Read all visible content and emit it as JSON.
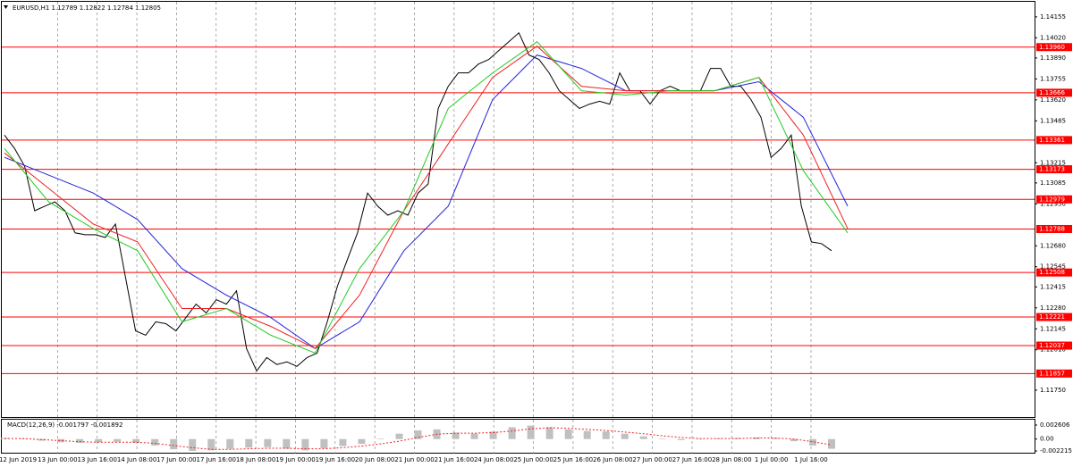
{
  "chart_data": {
    "type": "line",
    "title": "EURUSD,H1  1.12789 1.12822 1.12784 1.12805",
    "ylim": [
      1.11577,
      1.14252
    ],
    "yticks": [
      1.14155,
      {
        "value": 1.1402,
        "label": "1.14020"
      },
      {
        "value": 1.1389,
        "label": "1.13890"
      },
      1.13755,
      {
        "value": 1.1362,
        "label": "1.13620"
      },
      1.13485,
      1.13215,
      1.13085,
      {
        "value": 1.1295,
        "label": "1.12950"
      },
      {
        "value": 1.1268,
        "label": "1.12680"
      },
      1.12545,
      1.12415,
      {
        "value": 1.1228,
        "label": "1.12280"
      },
      1.12145,
      {
        "value": 1.1201,
        "label": "1.12010"
      },
      {
        "value": 1.1175,
        "label": "1.11750"
      }
    ],
    "x_labels": [
      "12 Jun 2019",
      "13 Jun 00:00",
      "13 Jun 16:00",
      "14 Jun 08:00",
      "17 Jun 00:00",
      "17 Jun 16:00",
      "18 Jun 08:00",
      "19 Jun 00:00",
      "19 Jun 16:00",
      "20 Jun 08:00",
      "21 Jun 00:00",
      "21 Jun 16:00",
      "24 Jun 08:00",
      "25 Jun 00:00",
      "25 Jun 16:00",
      "26 Jun 08:00",
      "27 Jun 00:00",
      "27 Jun 16:00",
      "28 Jun 08:00",
      "1 Jul 00:00",
      "1 Jul 16:00"
    ],
    "grid": true,
    "series": [
      {
        "color": "#000000",
        "values": [
          1.13393,
          1.13307,
          1.13192,
          1.12906,
          1.12935,
          1.12963,
          1.12906,
          1.12763,
          1.12751,
          1.12751,
          1.12734,
          1.1282,
          1.12476,
          1.12132,
          1.12104,
          1.1219,
          1.12178,
          1.12132,
          1.12218,
          1.12304,
          1.12247,
          1.12333,
          1.12304,
          1.1239,
          1.12018,
          1.11874,
          1.1196,
          1.11915,
          1.11932,
          1.11903,
          1.1196,
          1.11989,
          1.1219,
          1.12419,
          1.12591,
          1.12763,
          1.1302,
          1.12935,
          1.12877,
          1.12906,
          1.12877,
          1.1302,
          1.13078,
          1.13565,
          1.13708,
          1.13794,
          1.13794,
          1.13851,
          1.1388,
          1.13937,
          1.13995,
          1.14052,
          1.13909,
          1.1388,
          1.13794,
          1.13679,
          1.13622,
          1.13565,
          1.13593,
          1.13611,
          1.13593,
          1.13794,
          1.13679,
          1.13679,
          1.13593,
          1.13679,
          1.13708,
          1.13679,
          1.13679,
          1.13679,
          1.13823,
          1.13823,
          1.13708,
          1.13708,
          1.13622,
          1.13508,
          1.1325,
          1.13307,
          1.13393,
          1.12935,
          1.12705,
          1.12694,
          1.12648
        ]
      },
      {
        "color": "#2222dd",
        "values": [
          1.1325,
          1.13135,
          1.1302,
          1.12849,
          1.12533,
          1.12362,
          1.12218,
          1.12018,
          1.1219,
          1.12648,
          1.12935,
          1.13622,
          1.13909,
          1.13823,
          1.13679,
          1.13679,
          1.13679,
          1.13737,
          1.13508,
          1.12935
        ]
      },
      {
        "color": "#ee2222",
        "values": [
          1.13278,
          1.13049,
          1.1282,
          1.12705,
          1.12276,
          1.12276,
          1.12161,
          1.12018,
          1.12362,
          1.12906,
          1.13336,
          1.13765,
          1.13966,
          1.13708,
          1.13679,
          1.13679,
          1.13679,
          1.13765,
          1.13393,
          1.12791
        ]
      },
      {
        "color": "#22cc22",
        "values": [
          1.13307,
          1.12963,
          1.12791,
          1.12648,
          1.1219,
          1.12276,
          1.12104,
          1.11989,
          1.12533,
          1.12906,
          1.13565,
          1.13794,
          1.13995,
          1.13679,
          1.13651,
          1.13679,
          1.13679,
          1.13765,
          1.13164,
          1.12763
        ]
      }
    ],
    "levels": {
      "color": "#ff0000",
      "values": [
        1.1396,
        1.13666,
        1.13361,
        1.13173,
        1.12979,
        1.12788,
        1.12508,
        1.12221,
        1.12037,
        1.11857
      ],
      "value_labels": [
        "1.13960",
        "1.13666",
        "1.13361",
        "1.13173",
        "1.12979",
        "1.12788",
        "1.12508",
        "1.12221",
        "1.12037",
        "1.11857"
      ]
    },
    "macd": {
      "title": "MACD(12,26,9) -0.001797 -0.001892",
      "ylim": [
        -0.0027,
        0.0036
      ],
      "yticks": [
        0.002606,
        {
          "value": 0,
          "label": "0.00"
        },
        -0.002215
      ],
      "histogram": {
        "color": "#c0c0c0",
        "values": [
          0.0002,
          0.0001,
          -0.0003,
          -0.0006,
          -0.0007,
          -0.0006,
          -0.0005,
          -0.0007,
          -0.0012,
          -0.0019,
          -0.0022,
          -0.0021,
          -0.0018,
          -0.0016,
          -0.0015,
          -0.0018,
          -0.0021,
          -0.0017,
          -0.0013,
          -0.0009,
          0.0001,
          0.001,
          0.0016,
          0.0018,
          0.0012,
          0.001,
          0.0014,
          0.0022,
          0.0025,
          0.0022,
          0.0018,
          0.0015,
          0.0014,
          0.001,
          0.0005,
          0.0001,
          -0.0002,
          0.0,
          0.0001,
          0.0002,
          0.0003,
          0.0002,
          -0.0004,
          -0.0012,
          -0.0018
        ]
      },
      "signal": {
        "color": "#ee2222",
        "values": [
          0.0001,
          0.0001,
          -0.0001,
          -0.0003,
          -0.0005,
          -0.0006,
          -0.0006,
          -0.0006,
          -0.0008,
          -0.0012,
          -0.0016,
          -0.0019,
          -0.0019,
          -0.0018,
          -0.0017,
          -0.0017,
          -0.0018,
          -0.0018,
          -0.0016,
          -0.0013,
          -0.0009,
          -0.0004,
          0.0003,
          0.0009,
          0.0011,
          0.0011,
          0.0012,
          0.0015,
          0.0019,
          0.0021,
          0.002,
          0.0018,
          0.0016,
          0.0013,
          0.001,
          0.0006,
          0.0003,
          0.0001,
          0.0001,
          0.0001,
          0.0002,
          0.0002,
          0.0,
          -0.0005,
          -0.0011
        ]
      }
    }
  }
}
